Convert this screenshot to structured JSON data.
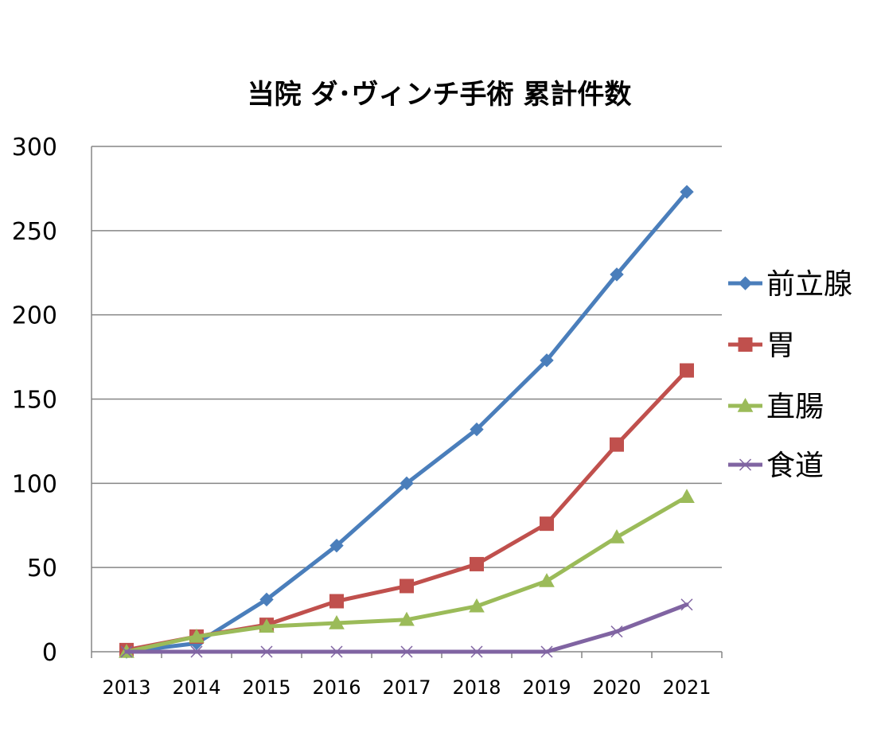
{
  "chart_data": {
    "type": "line",
    "title": "当院 ダ･ヴィンチ手術 累計件数",
    "categories": [
      "2013",
      "2014",
      "2015",
      "2016",
      "2017",
      "2018",
      "2019",
      "2020",
      "2021"
    ],
    "ylim": [
      0,
      300
    ],
    "yticks": [
      0,
      50,
      100,
      150,
      200,
      250,
      300
    ],
    "grid": true,
    "legend_position": "right",
    "series": [
      {
        "name": "前立腺",
        "color": "#4a7ebb",
        "marker": "diamond",
        "values": [
          0,
          5,
          31,
          63,
          100,
          132,
          173,
          224,
          273
        ]
      },
      {
        "name": "胃",
        "color": "#c0504d",
        "marker": "square",
        "values": [
          1,
          9,
          16,
          30,
          39,
          52,
          76,
          123,
          167
        ]
      },
      {
        "name": "直腸",
        "color": "#9bbb59",
        "marker": "triangle",
        "values": [
          0,
          9,
          15,
          17,
          19,
          27,
          42,
          68,
          92
        ]
      },
      {
        "name": "食道",
        "color": "#8064a2",
        "marker": "x",
        "values": [
          0,
          0,
          0,
          0,
          0,
          0,
          0,
          12,
          28
        ]
      }
    ]
  }
}
